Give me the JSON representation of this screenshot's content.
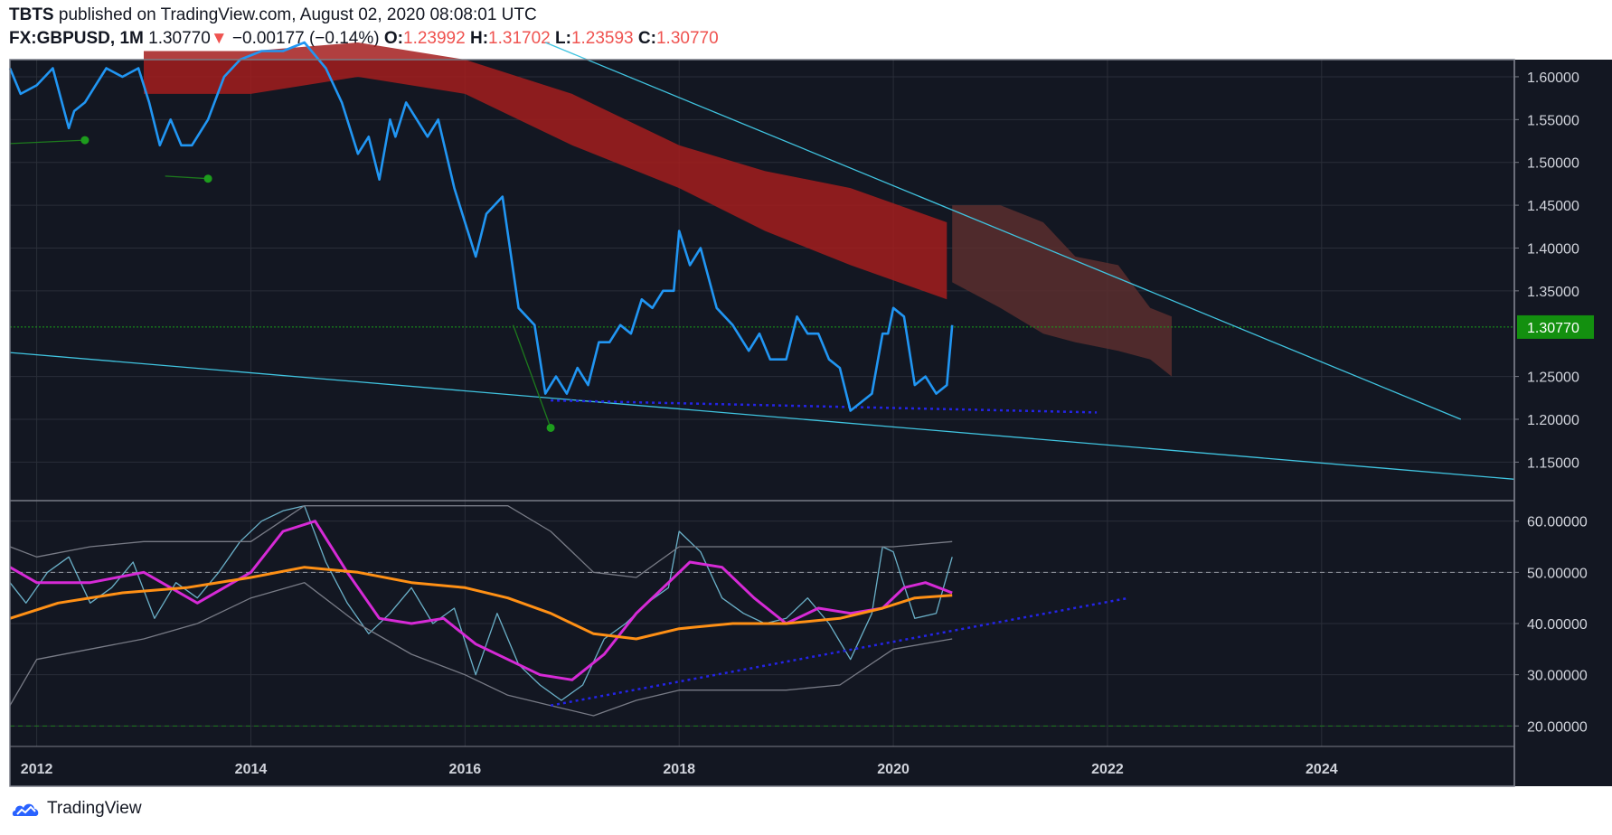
{
  "header": {
    "author": "TBTS",
    "published_text": "published on TradingView.com, August 02, 2020 08:08:01 UTC",
    "symbol": "FX:GBPUSD, 1M",
    "last": "1.30770",
    "change_arrow": "▼",
    "change": "−0.00177 (−0.14%)",
    "o_label": "O:",
    "o_value": "1.23992",
    "h_label": "H:",
    "h_value": "1.31702",
    "l_label": "L:",
    "l_value": "1.23593",
    "c_label": "C:",
    "c_value": "1.30770"
  },
  "brand": {
    "name": "TradingView"
  },
  "colors": {
    "background": "#131722",
    "price_line": "#2196f3",
    "trendline": "#40c4e0",
    "rsi": "#6ab0c8",
    "rsi_ma": "#d62ad6",
    "slow_ma": "#ff9015",
    "band": "#787b86",
    "dotted": "#2424e6",
    "cloud_red": "#a31d1d",
    "cloud_green": "#2e6b3a",
    "last_price_label": "#13900f"
  },
  "chart_data": {
    "type": "line",
    "title": "FX:GBPUSD, 1M",
    "x_tick_labels": [
      "2012",
      "2014",
      "2016",
      "2018",
      "2020",
      "2022",
      "2024"
    ],
    "xlim": [
      2011.75,
      2025.8
    ],
    "price_panel": {
      "ylim": [
        1.105,
        1.62
      ],
      "y_tick_labels": [
        "1.60000",
        "1.55000",
        "1.50000",
        "1.45000",
        "1.40000",
        "1.35000",
        "1.25000",
        "1.20000",
        "1.15000"
      ],
      "y_ticks": [
        1.6,
        1.55,
        1.5,
        1.45,
        1.4,
        1.35,
        1.25,
        1.2,
        1.15
      ],
      "last_price_label": "1.30770",
      "last_price": 1.3077,
      "series": [
        {
          "name": "GBPUSD close",
          "x": [
            2011.75,
            2011.85,
            2012.0,
            2012.15,
            2012.3,
            2012.35,
            2012.45,
            2012.55,
            2012.65,
            2012.8,
            2012.95,
            2013.05,
            2013.15,
            2013.25,
            2013.35,
            2013.45,
            2013.6,
            2013.75,
            2013.9,
            2014.1,
            2014.3,
            2014.5,
            2014.7,
            2014.85,
            2015.0,
            2015.1,
            2015.2,
            2015.3,
            2015.35,
            2015.45,
            2015.55,
            2015.65,
            2015.75,
            2015.9,
            2016.0,
            2016.1,
            2016.2,
            2016.35,
            2016.5,
            2016.65,
            2016.75,
            2016.85,
            2016.95,
            2017.05,
            2017.15,
            2017.25,
            2017.35,
            2017.45,
            2017.55,
            2017.65,
            2017.75,
            2017.85,
            2017.95,
            2018.0,
            2018.1,
            2018.2,
            2018.35,
            2018.5,
            2018.65,
            2018.75,
            2018.85,
            2019.0,
            2019.1,
            2019.2,
            2019.3,
            2019.4,
            2019.5,
            2019.6,
            2019.7,
            2019.8,
            2019.9,
            2019.95,
            2020.0,
            2020.1,
            2020.2,
            2020.3,
            2020.4,
            2020.5,
            2020.55
          ],
          "y": [
            1.61,
            1.58,
            1.59,
            1.61,
            1.54,
            1.56,
            1.57,
            1.59,
            1.61,
            1.6,
            1.61,
            1.57,
            1.52,
            1.55,
            1.52,
            1.52,
            1.55,
            1.6,
            1.62,
            1.63,
            1.63,
            1.64,
            1.61,
            1.57,
            1.51,
            1.53,
            1.48,
            1.55,
            1.53,
            1.57,
            1.55,
            1.53,
            1.55,
            1.47,
            1.43,
            1.39,
            1.44,
            1.46,
            1.33,
            1.31,
            1.23,
            1.25,
            1.23,
            1.26,
            1.24,
            1.29,
            1.29,
            1.31,
            1.3,
            1.34,
            1.33,
            1.35,
            1.35,
            1.42,
            1.38,
            1.4,
            1.33,
            1.31,
            1.28,
            1.3,
            1.27,
            1.27,
            1.32,
            1.3,
            1.3,
            1.27,
            1.26,
            1.21,
            1.22,
            1.23,
            1.3,
            1.3,
            1.33,
            1.32,
            1.24,
            1.25,
            1.23,
            1.24,
            1.31
          ]
        }
      ],
      "trendlines": [
        {
          "name": "upper descending trendline",
          "x": [
            2016.75,
            2025.3
          ],
          "y": [
            1.64,
            1.2
          ]
        },
        {
          "name": "lower descending trendline",
          "x": [
            2011.75,
            2025.8
          ],
          "y": [
            1.278,
            1.13
          ]
        },
        {
          "name": "support dotted line",
          "x": [
            2016.8,
            2021.9
          ],
          "y": [
            1.222,
            1.208
          ]
        },
        {
          "name": "green marker line 1",
          "x": [
            2011.75,
            2012.45
          ],
          "y": [
            1.522,
            1.526
          ]
        },
        {
          "name": "green marker line 2",
          "x": [
            2013.2,
            2013.6
          ],
          "y": [
            1.484,
            1.481
          ]
        },
        {
          "name": "green marker line 3",
          "x": [
            2016.45,
            2016.8
          ],
          "y": [
            1.31,
            1.19
          ]
        }
      ],
      "markers": [
        {
          "x": 2012.45,
          "y": 1.526
        },
        {
          "x": 2013.6,
          "y": 1.481
        },
        {
          "x": 2016.8,
          "y": 1.19
        }
      ],
      "cloud": {
        "red_upper": {
          "x": [
            2013.0,
            2014.0,
            2015.0,
            2016.0,
            2017.0,
            2018.0,
            2018.8,
            2019.6,
            2020.5
          ],
          "y": [
            1.63,
            1.63,
            1.64,
            1.62,
            1.58,
            1.52,
            1.49,
            1.47,
            1.43
          ]
        },
        "red_lower": {
          "x": [
            2013.0,
            2014.0,
            2015.0,
            2016.0,
            2017.0,
            2018.0,
            2018.8,
            2019.6,
            2020.5
          ],
          "y": [
            1.58,
            1.58,
            1.6,
            1.58,
            1.52,
            1.47,
            1.42,
            1.38,
            1.34
          ]
        },
        "future_upper": {
          "x": [
            2020.55,
            2021.0,
            2021.4,
            2021.7,
            2022.1,
            2022.4,
            2022.6
          ],
          "y": [
            1.45,
            1.45,
            1.43,
            1.39,
            1.38,
            1.33,
            1.32
          ]
        },
        "future_lower": {
          "x": [
            2020.55,
            2021.0,
            2021.4,
            2021.7,
            2022.1,
            2022.4,
            2022.6
          ],
          "y": [
            1.36,
            1.33,
            1.3,
            1.29,
            1.28,
            1.27,
            1.25
          ]
        }
      }
    },
    "rsi_panel": {
      "ylim": [
        16,
        64
      ],
      "y_tick_labels": [
        "60.00000",
        "50.00000",
        "40.00000",
        "30.00000",
        "20.00000"
      ],
      "y_ticks": [
        60,
        50,
        40,
        30,
        20
      ],
      "levels": [
        50,
        20
      ],
      "series": [
        {
          "name": "RSI",
          "x": [
            2011.75,
            2011.9,
            2012.1,
            2012.3,
            2012.5,
            2012.7,
            2012.9,
            2013.1,
            2013.3,
            2013.5,
            2013.7,
            2013.9,
            2014.1,
            2014.3,
            2014.5,
            2014.7,
            2014.9,
            2015.1,
            2015.3,
            2015.5,
            2015.7,
            2015.9,
            2016.1,
            2016.3,
            2016.5,
            2016.7,
            2016.9,
            2017.1,
            2017.3,
            2017.5,
            2017.7,
            2017.9,
            2018.0,
            2018.2,
            2018.4,
            2018.6,
            2018.8,
            2019.0,
            2019.2,
            2019.4,
            2019.6,
            2019.8,
            2019.9,
            2020.0,
            2020.2,
            2020.4,
            2020.55
          ],
          "y": [
            48,
            44,
            50,
            53,
            44,
            47,
            52,
            41,
            48,
            45,
            50,
            56,
            60,
            62,
            63,
            52,
            44,
            38,
            42,
            47,
            40,
            43,
            30,
            42,
            32,
            28,
            25,
            28,
            37,
            40,
            44,
            47,
            58,
            54,
            45,
            42,
            40,
            41,
            45,
            40,
            33,
            42,
            55,
            54,
            41,
            42,
            53
          ]
        },
        {
          "name": "RSI MA",
          "x": [
            2011.75,
            2012.0,
            2012.5,
            2013.0,
            2013.5,
            2014.0,
            2014.3,
            2014.6,
            2014.9,
            2015.2,
            2015.5,
            2015.8,
            2016.1,
            2016.4,
            2016.7,
            2017.0,
            2017.3,
            2017.6,
            2017.9,
            2018.1,
            2018.4,
            2018.7,
            2019.0,
            2019.3,
            2019.6,
            2019.9,
            2020.1,
            2020.3,
            2020.55
          ],
          "y": [
            51,
            48,
            48,
            50,
            44,
            50,
            58,
            60,
            50,
            41,
            40,
            41,
            36,
            33,
            30,
            29,
            34,
            42,
            48,
            52,
            51,
            45,
            40,
            43,
            42,
            43,
            47,
            48,
            46
          ]
        },
        {
          "name": "Slow MA",
          "x": [
            2011.75,
            2012.2,
            2012.8,
            2013.4,
            2014.0,
            2014.5,
            2015.0,
            2015.5,
            2016.0,
            2016.4,
            2016.8,
            2017.2,
            2017.6,
            2018.0,
            2018.5,
            2019.0,
            2019.5,
            2019.9,
            2020.2,
            2020.55
          ],
          "y": [
            41,
            44,
            46,
            47,
            49,
            51,
            50,
            48,
            47,
            45,
            42,
            38,
            37,
            39,
            40,
            40,
            41,
            43,
            45,
            45.5
          ]
        },
        {
          "name": "Upper band",
          "x": [
            2011.75,
            2012.0,
            2012.5,
            2013.0,
            2013.5,
            2014.0,
            2014.5,
            2015.0,
            2015.5,
            2016.0,
            2016.4,
            2016.8,
            2017.2,
            2017.6,
            2018.0,
            2018.5,
            2019.0,
            2019.5,
            2020.0,
            2020.55
          ],
          "y": [
            55,
            53,
            55,
            56,
            56,
            56,
            63,
            63,
            63,
            63,
            63,
            58,
            50,
            49,
            55,
            55,
            55,
            55,
            55,
            56
          ]
        },
        {
          "name": "Lower band",
          "x": [
            2011.75,
            2012.0,
            2012.5,
            2013.0,
            2013.5,
            2014.0,
            2014.5,
            2015.0,
            2015.5,
            2016.0,
            2016.4,
            2016.8,
            2017.2,
            2017.6,
            2018.0,
            2018.5,
            2019.0,
            2019.5,
            2020.0,
            2020.55
          ],
          "y": [
            24,
            33,
            35,
            37,
            40,
            45,
            48,
            40,
            34,
            30,
            26,
            24,
            22,
            25,
            27,
            27,
            27,
            28,
            35,
            37
          ]
        },
        {
          "name": "RSI support dotted",
          "x": [
            2016.8,
            2022.2
          ],
          "y": [
            24,
            45
          ]
        }
      ]
    }
  }
}
